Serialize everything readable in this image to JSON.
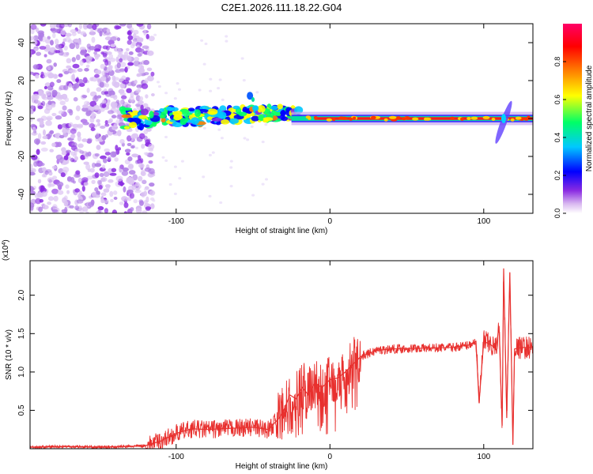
{
  "page_title": "C2E1.2026.111.18.22.G04",
  "chart_data": [
    {
      "type": "heatmap",
      "xlabel": "Height of straight line (km)",
      "ylabel": "Frequency (Hz)",
      "xlim": [
        -195,
        132
      ],
      "ylim": [
        -50,
        50
      ],
      "x_ticks": [
        -100,
        0,
        100
      ],
      "x_tick_labels": [
        "-100",
        "0",
        "100"
      ],
      "y_ticks": [
        -40,
        -20,
        0,
        20,
        40
      ],
      "y_tick_labels": [
        "-40",
        "-20",
        "0",
        "20",
        "40"
      ],
      "ridge": {
        "description": "Main signal band near 0 Hz; strong red band from about -30 km to 132 km",
        "noise_region_x": [
          -195,
          -120
        ],
        "scattered_region_x": [
          -135,
          -20
        ],
        "strong_band_x": [
          -25,
          132
        ],
        "spike_x": 113,
        "spike_f": [
          -14,
          10
        ],
        "side_blob": {
          "x": -52,
          "f": 12
        }
      },
      "colorbar": {
        "label": "Normalized spectral amplitude",
        "range": [
          0,
          1
        ],
        "ticks": [
          0.0,
          0.2,
          0.4,
          0.6,
          0.8
        ],
        "tick_labels": [
          "0.0",
          "0.2",
          "0.4",
          "0.6",
          "0.8"
        ],
        "colors": [
          "#ffffff",
          "#d9b8f0",
          "#8a2be2",
          "#0000ff",
          "#00c8ff",
          "#00ff66",
          "#ffff00",
          "#ff8000",
          "#ff0000",
          "#ff0066"
        ]
      }
    },
    {
      "type": "line",
      "xlabel": "Height of straight line (km)",
      "ylabel": "SNR (10 * v/v)",
      "y_scale_label": "(x10",
      "y_scale_exp": "4",
      "y_scale_close": ")",
      "xlim": [
        -195,
        132
      ],
      "ylim": [
        0,
        2.45
      ],
      "x_ticks": [
        -100,
        0,
        100
      ],
      "x_tick_labels": [
        "-100",
        "0",
        "100"
      ],
      "y_ticks": [
        0.5,
        1.0,
        1.5,
        2.0
      ],
      "y_tick_labels": [
        "0.5",
        "1.0",
        "1.5",
        "2.0"
      ],
      "series": [
        {
          "name": "SNR",
          "color": "#e8302e",
          "x": [
            -195,
            -170,
            -150,
            -130,
            -120,
            -110,
            -100,
            -90,
            -80,
            -70,
            -60,
            -50,
            -40,
            -33,
            -30,
            -26,
            -22,
            -18,
            -14,
            -10,
            -5,
            0,
            5,
            10,
            15,
            20,
            30,
            40,
            60,
            80,
            90,
            95,
            97,
            100,
            105,
            108,
            110,
            112,
            113,
            115,
            117,
            119,
            120,
            125,
            132
          ],
          "y": [
            0.02,
            0.03,
            0.02,
            0.03,
            0.04,
            0.1,
            0.2,
            0.26,
            0.25,
            0.26,
            0.27,
            0.28,
            0.25,
            0.4,
            0.5,
            0.7,
            0.65,
            0.8,
            0.7,
            0.85,
            0.8,
            0.9,
            0.92,
            1.0,
            1.1,
            1.2,
            1.28,
            1.3,
            1.31,
            1.32,
            1.35,
            1.4,
            0.6,
            1.4,
            1.35,
            1.3,
            1.6,
            0.3,
            2.35,
            0.4,
            2.3,
            0.05,
            1.3,
            1.32,
            1.32
          ]
        }
      ]
    }
  ]
}
